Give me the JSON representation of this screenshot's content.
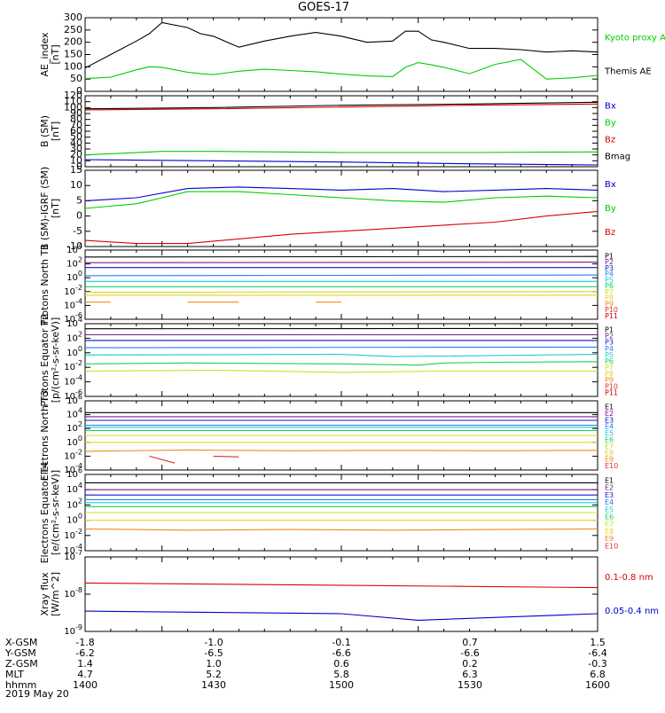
{
  "title": "GOES-17",
  "date_label": "2019 May 20",
  "orbit": {
    "rows": [
      {
        "label": "X-GSM",
        "values": [
          "-1.8",
          "-1.0",
          "-0.1",
          "0.7",
          "1.5"
        ]
      },
      {
        "label": "Y-GSM",
        "values": [
          "-6.2",
          "-6.5",
          "-6.6",
          "-6.6",
          "-6.4"
        ]
      },
      {
        "label": "Z-GSM",
        "values": [
          "1.4",
          "1.0",
          "0.6",
          "0.2",
          "-0.3"
        ]
      },
      {
        "label": "MLT",
        "values": [
          "4.7",
          "5.2",
          "5.8",
          "6.3",
          "6.8"
        ]
      },
      {
        "label": "hhmm",
        "values": [
          "1400",
          "1430",
          "1500",
          "1530",
          "1600"
        ]
      }
    ]
  },
  "colors": {
    "black": "#000000",
    "green": "#00cc00",
    "red": "#dd0000",
    "blue": "#0000cc",
    "P1": "#000000",
    "P2": "#7a1a8a",
    "P3": "#1515c8",
    "P4": "#1e7ff0",
    "P5": "#18c8d8",
    "P6": "#18d060",
    "P7": "#c8e020",
    "P8": "#e8d028",
    "P9": "#f08a18",
    "P10": "#e03020",
    "P11": "#c80000"
  },
  "chart_data": [
    {
      "type": "line",
      "ylabel": "AE_index [nT]",
      "ylim": [
        0,
        300
      ],
      "yticks": [
        "0",
        "50",
        "100",
        "150",
        "200",
        "250",
        "300"
      ],
      "x_range": [
        1400,
        1600
      ],
      "series": [
        {
          "name": "Kyoto proxy AE",
          "color": "#00cc00",
          "x": [
            1400,
            1410,
            1420,
            1425,
            1430,
            1440,
            1445,
            1450,
            1460,
            1470,
            1480,
            1490,
            1500,
            1510,
            1520,
            1525,
            1530,
            1535,
            1540,
            1550,
            1560,
            1570,
            1580,
            1590,
            1600
          ],
          "values": [
            52,
            58,
            88,
            100,
            98,
            78,
            72,
            68,
            82,
            90,
            85,
            80,
            70,
            63,
            60,
            98,
            117,
            108,
            98,
            72,
            110,
            130,
            50,
            55,
            65
          ]
        },
        {
          "name": "Themis AE",
          "color": "#000000",
          "x": [
            1400,
            1410,
            1420,
            1425,
            1430,
            1440,
            1445,
            1450,
            1460,
            1470,
            1480,
            1490,
            1500,
            1510,
            1520,
            1525,
            1530,
            1535,
            1540,
            1550,
            1560,
            1570,
            1580,
            1590,
            1600
          ],
          "values": [
            95,
            150,
            205,
            235,
            280,
            260,
            235,
            225,
            180,
            205,
            225,
            240,
            225,
            200,
            205,
            245,
            245,
            210,
            200,
            175,
            175,
            170,
            160,
            165,
            160
          ]
        }
      ]
    },
    {
      "type": "line",
      "ylabel": "B (SM) [nT]",
      "ylim": [
        0,
        120
      ],
      "yticks": [
        "0",
        "10",
        "20",
        "30",
        "40",
        "50",
        "60",
        "70",
        "80",
        "90",
        "100",
        "110",
        "120"
      ],
      "x_range": [
        1400,
        1600
      ],
      "series": [
        {
          "name": "Bx",
          "color": "#0000cc",
          "x": [
            1400,
            1450,
            1500,
            1550,
            1600
          ],
          "values": [
            12,
            10,
            8,
            5,
            3
          ]
        },
        {
          "name": "By",
          "color": "#00cc00",
          "x": [
            1400,
            1430,
            1450,
            1500,
            1550,
            1600
          ],
          "values": [
            20,
            26,
            26,
            24,
            24,
            25
          ]
        },
        {
          "name": "Bz",
          "color": "#dd0000",
          "x": [
            1400,
            1450,
            1500,
            1550,
            1600
          ],
          "values": [
            96,
            98,
            101,
            104,
            106
          ]
        },
        {
          "name": "Bmag",
          "color": "#000000",
          "x": [
            1400,
            1450,
            1500,
            1550,
            1600
          ],
          "values": [
            98,
            100,
            104,
            106,
            109
          ]
        }
      ]
    },
    {
      "type": "line",
      "ylabel": "B (SM)-IGRF (SM) [nT]",
      "ylim": [
        -10,
        15
      ],
      "yticks": [
        "-10",
        "-5",
        "0",
        "5",
        "10",
        "15"
      ],
      "x_range": [
        1400,
        1600
      ],
      "series": [
        {
          "name": "Bx",
          "color": "#0000cc",
          "x": [
            1400,
            1420,
            1440,
            1460,
            1480,
            1500,
            1520,
            1540,
            1560,
            1580,
            1600
          ],
          "values": [
            5,
            6,
            9,
            9.5,
            9,
            8.5,
            9,
            8,
            8.5,
            9,
            8.5
          ]
        },
        {
          "name": "By",
          "color": "#00cc00",
          "x": [
            1400,
            1420,
            1430,
            1440,
            1460,
            1480,
            1500,
            1520,
            1540,
            1560,
            1580,
            1600
          ],
          "values": [
            2.5,
            4,
            6,
            8,
            8,
            7,
            6,
            5,
            4.5,
            6,
            6.5,
            6
          ]
        },
        {
          "name": "Bz",
          "color": "#dd0000",
          "x": [
            1400,
            1420,
            1440,
            1460,
            1480,
            1500,
            1520,
            1540,
            1560,
            1580,
            1600
          ],
          "values": [
            -8,
            -9,
            -9,
            -7.5,
            -6,
            -5,
            -4,
            -3,
            -2,
            0,
            1.5
          ]
        }
      ]
    },
    {
      "type": "line",
      "ylabel": "Protons North T1",
      "yscale": "log",
      "ylim": [
        1e-06,
        10000.0
      ],
      "yticks": [
        "10^-6",
        "10^-4",
        "10^-2",
        "10^0",
        "10^2",
        "10^4"
      ],
      "x_range": [
        1400,
        1600
      ],
      "series": [
        {
          "name": "P1",
          "x": [
            1400,
            1600
          ],
          "values": [
            1000,
            1200
          ]
        },
        {
          "name": "P2",
          "x": [
            1400,
            1600
          ],
          "values": [
            150,
            180
          ]
        },
        {
          "name": "P3",
          "x": [
            1400,
            1600
          ],
          "values": [
            30,
            30
          ]
        },
        {
          "name": "P4",
          "x": [
            1400,
            1600
          ],
          "values": [
            2,
            2.5
          ]
        },
        {
          "name": "P5",
          "x": [
            1400,
            1600
          ],
          "values": [
            0.3,
            0.3
          ]
        },
        {
          "name": "P6",
          "x": [
            1400,
            1600
          ],
          "values": [
            0.05,
            0.05
          ]
        },
        {
          "name": "P7",
          "x": [
            1400,
            1600
          ],
          "values": [
            0.008,
            0.01
          ]
        },
        {
          "name": "P8",
          "x": [
            1400,
            1600
          ],
          "values": [
            0.003,
            0.003
          ]
        },
        {
          "name": "P9",
          "x": [
            1400,
            1410,
            1440,
            1460,
            1490,
            1500
          ],
          "values": [
            0.0003,
            0.0003,
            0.0003,
            0.0003,
            0.0003,
            0.0003
          ],
          "segments": [
            [
              1400,
              1410
            ],
            [
              1440,
              1460
            ],
            [
              1490,
              1500
            ]
          ]
        },
        {
          "name": "P10"
        },
        {
          "name": "P11"
        }
      ]
    },
    {
      "type": "line",
      "ylabel": "Protons Equator T2 [p/(cm²-s-sr-keV)]",
      "yscale": "log",
      "ylim": [
        1e-06,
        10000.0
      ],
      "yticks": [
        "10^-6",
        "10^-4",
        "10^-2",
        "10^0",
        "10^2",
        "10^4"
      ],
      "x_range": [
        1400,
        1600
      ],
      "series": [
        {
          "name": "P1",
          "x": [
            1400,
            1600
          ],
          "values": [
            2000,
            2200
          ]
        },
        {
          "name": "P2",
          "x": [
            1400,
            1600
          ],
          "values": [
            300,
            300
          ]
        },
        {
          "name": "P3",
          "x": [
            1400,
            1600
          ],
          "values": [
            50,
            50
          ]
        },
        {
          "name": "P4",
          "x": [
            1400,
            1600
          ],
          "values": [
            5,
            6
          ]
        },
        {
          "name": "P5",
          "x": [
            1400,
            1500,
            1520,
            1600
          ],
          "values": [
            0.5,
            0.6,
            0.3,
            0.6
          ]
        },
        {
          "name": "P6",
          "x": [
            1400,
            1440,
            1500,
            1530,
            1540,
            1560,
            1600
          ],
          "values": [
            0.03,
            0.04,
            0.03,
            0.02,
            0.04,
            0.05,
            0.06
          ]
        },
        {
          "name": "P7",
          "x": [
            1400,
            1450,
            1500,
            1540,
            1600
          ],
          "values": [
            0.003,
            0.004,
            0.002,
            0.003,
            0.003
          ]
        },
        {
          "name": "P8"
        },
        {
          "name": "P9"
        },
        {
          "name": "P10"
        },
        {
          "name": "P11"
        }
      ]
    },
    {
      "type": "line",
      "ylabel": "Electrons North T3",
      "yscale": "log",
      "ylim": [
        0.0001,
        1000000.0
      ],
      "yticks": [
        "10^-4",
        "10^-2",
        "10^0",
        "10^2",
        "10^4",
        "10^6"
      ],
      "x_range": [
        1400,
        1600
      ],
      "series": [
        {
          "name": "E1",
          "x": [
            1400,
            1600
          ],
          "values": [
            20000,
            20000
          ]
        },
        {
          "name": "E2",
          "x": [
            1400,
            1600
          ],
          "values": [
            5000,
            5000
          ]
        },
        {
          "name": "E3",
          "x": [
            1400,
            1600
          ],
          "values": [
            1500,
            1500
          ]
        },
        {
          "name": "E4",
          "x": [
            1400,
            1600
          ],
          "values": [
            300,
            300
          ]
        },
        {
          "name": "E5",
          "x": [
            1400,
            1600
          ],
          "values": [
            150,
            150
          ]
        },
        {
          "name": "E6",
          "x": [
            1400,
            1600
          ],
          "values": [
            50,
            50
          ]
        },
        {
          "name": "E7",
          "x": [
            1400,
            1600
          ],
          "values": [
            10,
            10
          ]
        },
        {
          "name": "E8",
          "x": [
            1400,
            1600
          ],
          "values": [
            1,
            1
          ]
        },
        {
          "name": "E9",
          "x": [
            1400,
            1440,
            1480,
            1520,
            1560,
            1600
          ],
          "values": [
            0.05,
            0.08,
            0.06,
            0.07,
            0.06,
            0.07
          ]
        },
        {
          "name": "E10",
          "x": [
            1425,
            1435,
            1450,
            1460
          ],
          "values": [
            0.01,
            0.001,
            0.01,
            0.008
          ],
          "segments": [
            [
              1425,
              1435
            ],
            [
              1450,
              1460
            ]
          ]
        }
      ]
    },
    {
      "type": "line",
      "ylabel": "Electrons Equator T4 [e/(cm²-s-sr-keV)]",
      "yscale": "log",
      "ylim": [
        0.0001,
        1000000.0
      ],
      "yticks": [
        "10^-4",
        "10^-2",
        "10^0",
        "10^2",
        "10^4",
        "10^6"
      ],
      "x_range": [
        1400,
        1600
      ],
      "series": [
        {
          "name": "E1",
          "x": [
            1400,
            1600
          ],
          "values": [
            80000,
            80000
          ]
        },
        {
          "name": "E2",
          "x": [
            1400,
            1600
          ],
          "values": [
            10000,
            10000
          ]
        },
        {
          "name": "E3",
          "x": [
            1400,
            1600
          ],
          "values": [
            2000,
            2000
          ]
        },
        {
          "name": "E4",
          "x": [
            1400,
            1600
          ],
          "values": [
            500,
            500
          ]
        },
        {
          "name": "E5",
          "x": [
            1400,
            1600
          ],
          "values": [
            200,
            200
          ]
        },
        {
          "name": "E6",
          "x": [
            1400,
            1600
          ],
          "values": [
            60,
            60
          ]
        },
        {
          "name": "E7",
          "x": [
            1400,
            1600
          ],
          "values": [
            10,
            10
          ]
        },
        {
          "name": "E8",
          "x": [
            1400,
            1600
          ],
          "values": [
            1,
            1
          ]
        },
        {
          "name": "E9",
          "x": [
            1400,
            1440,
            1480,
            1520,
            1560,
            1600
          ],
          "values": [
            0.07,
            0.05,
            0.06,
            0.05,
            0.06,
            0.07
          ]
        },
        {
          "name": "E10"
        }
      ]
    },
    {
      "type": "line",
      "ylabel": "Xray flux [W/m^2]",
      "yscale": "log",
      "ylim": [
        1e-09,
        1e-07
      ],
      "yticks": [
        "10^-9",
        "10^-8",
        "10^-7"
      ],
      "x_range": [
        1400,
        1600
      ],
      "series": [
        {
          "name": "0.1-0.8 nm",
          "color": "#dd0000",
          "x": [
            1400,
            1600
          ],
          "values": [
            2e-08,
            1.5e-08
          ]
        },
        {
          "name": "0.05-0.4 nm",
          "color": "#0000cc",
          "x": [
            1400,
            1500,
            1530,
            1600
          ],
          "values": [
            3.5e-09,
            3e-09,
            2e-09,
            3e-09
          ]
        }
      ]
    }
  ]
}
